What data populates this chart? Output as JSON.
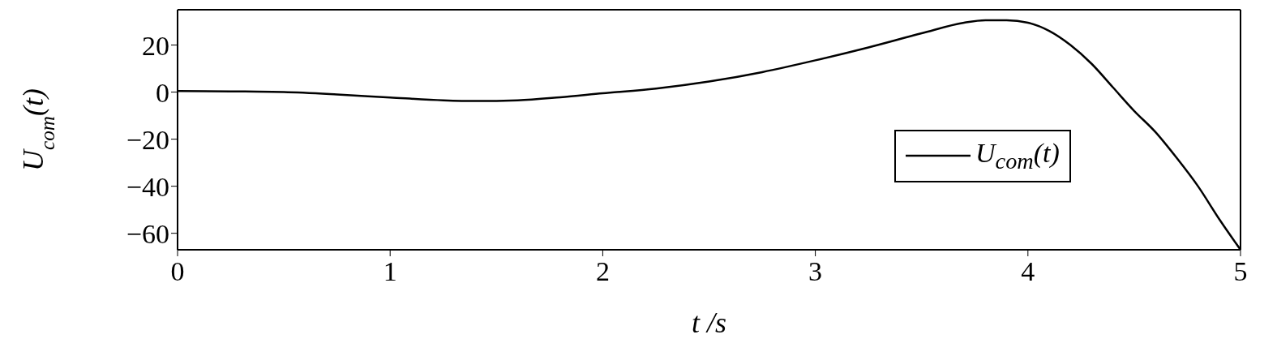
{
  "chart_data": {
    "type": "line",
    "xlabel": "t /s",
    "ylabel": "U$_{com}$(t)",
    "x": [
      0,
      0.25,
      0.5,
      0.75,
      1,
      1.25,
      1.4,
      1.6,
      1.8,
      2,
      2.25,
      2.5,
      2.75,
      3,
      3.25,
      3.5,
      3.7,
      3.8,
      3.9,
      4,
      4.1,
      4.2,
      4.3,
      4.4,
      4.5,
      4.6,
      4.7,
      4.8,
      4.9,
      5
    ],
    "series": [
      {
        "name": "U$_{com}$(t)",
        "color": "#000000",
        "values": [
          0.5,
          0.3,
          0,
          -1,
          -2.3,
          -3.5,
          -3.8,
          -3.5,
          -2.2,
          -0.5,
          1.5,
          4.5,
          8.5,
          13.5,
          19,
          25,
          29.5,
          30.5,
          30.5,
          29.5,
          26,
          20,
          12,
          2,
          -8,
          -17,
          -28,
          -40,
          -54,
          -67
        ]
      }
    ],
    "xlim": [
      0,
      5
    ],
    "xticks": [
      0,
      1,
      2,
      3,
      4,
      5
    ],
    "ylim": [
      -67,
      35
    ],
    "yticks": [
      -60,
      -40,
      -20,
      0,
      20
    ],
    "grid": false,
    "legend": "bottom right",
    "marker": "none",
    "line_style": "solid"
  }
}
